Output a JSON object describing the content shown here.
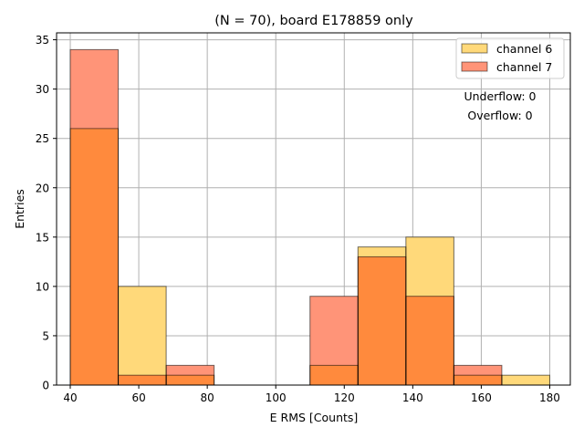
{
  "chart_data": {
    "type": "bar",
    "title": "(N = 70), board E178859 only",
    "xlabel": "E RMS [Counts]",
    "ylabel": "Entries",
    "xlim": [
      36,
      186
    ],
    "ylim": [
      0,
      35.7
    ],
    "xticks": [
      40,
      60,
      80,
      100,
      120,
      140,
      160,
      180
    ],
    "yticks": [
      0,
      5,
      10,
      15,
      20,
      25,
      30,
      35
    ],
    "bin_edges": [
      40,
      54,
      68,
      82,
      96,
      110,
      124,
      138,
      152,
      166,
      180
    ],
    "grid": true,
    "legend_position": "top-right",
    "series": [
      {
        "name": "channel 6",
        "color": "#FFD97A",
        "values": [
          26,
          10,
          1,
          0,
          0,
          2,
          14,
          15,
          1,
          1
        ]
      },
      {
        "name": "channel 7",
        "color": "#FF9478",
        "values": [
          34,
          1,
          2,
          0,
          0,
          9,
          13,
          9,
          2,
          0
        ]
      }
    ],
    "overlap_color": "#FF8A3D",
    "annotations": [
      "Underflow: 0",
      "Overflow: 0"
    ]
  }
}
